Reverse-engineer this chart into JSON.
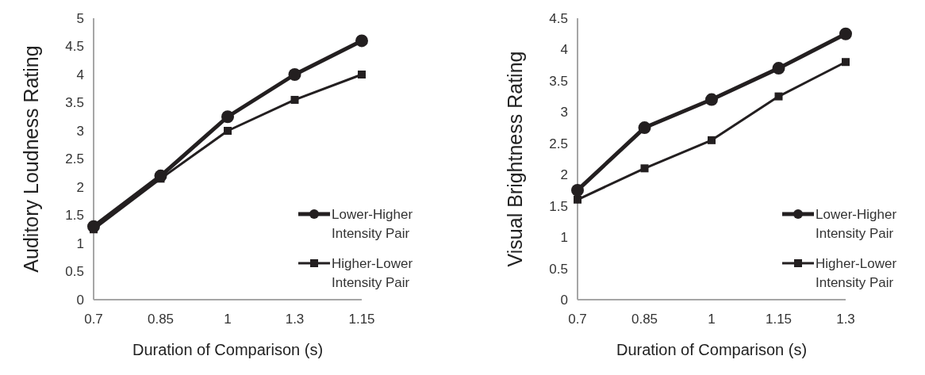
{
  "chart_data": [
    {
      "type": "line",
      "xlabel": "Duration of Comparison (s)",
      "ylabel": "Auditory Loudness Rating",
      "categories": [
        "0.7",
        "0.85",
        "1",
        "1.3",
        "1.15"
      ],
      "ylim": [
        0,
        5
      ],
      "yticks": [
        0,
        0.5,
        1,
        1.5,
        2,
        2.5,
        3,
        3.5,
        4,
        4.5,
        5
      ],
      "grid": false,
      "legend": "right",
      "series": [
        {
          "name": "Lower-Higher Intensity Pair",
          "color": "#231f20",
          "marker": "circle",
          "values": [
            1.3,
            2.2,
            3.25,
            4.0,
            4.6
          ]
        },
        {
          "name": "Higher-Lower Intensity Pair",
          "color": "#231f20",
          "marker": "square",
          "values": [
            1.25,
            2.15,
            3.0,
            3.55,
            4.0
          ]
        }
      ]
    },
    {
      "type": "line",
      "xlabel": "Duration of Comparison (s)",
      "ylabel": "Visual Brightness Rating",
      "categories": [
        "0.7",
        "0.85",
        "1",
        "1.15",
        "1.3"
      ],
      "ylim": [
        0,
        4.5
      ],
      "yticks": [
        0,
        0.5,
        1,
        1.5,
        2,
        2.5,
        3,
        3.5,
        4,
        4.5
      ],
      "grid": false,
      "legend": "right",
      "series": [
        {
          "name": "Lower-Higher Intensity Pair",
          "color": "#231f20",
          "marker": "circle",
          "values": [
            1.75,
            2.75,
            3.2,
            3.7,
            4.25
          ]
        },
        {
          "name": "Higher-Lower Intensity Pair",
          "color": "#231f20",
          "marker": "square",
          "values": [
            1.6,
            2.1,
            2.55,
            3.25,
            3.8
          ]
        }
      ]
    }
  ]
}
